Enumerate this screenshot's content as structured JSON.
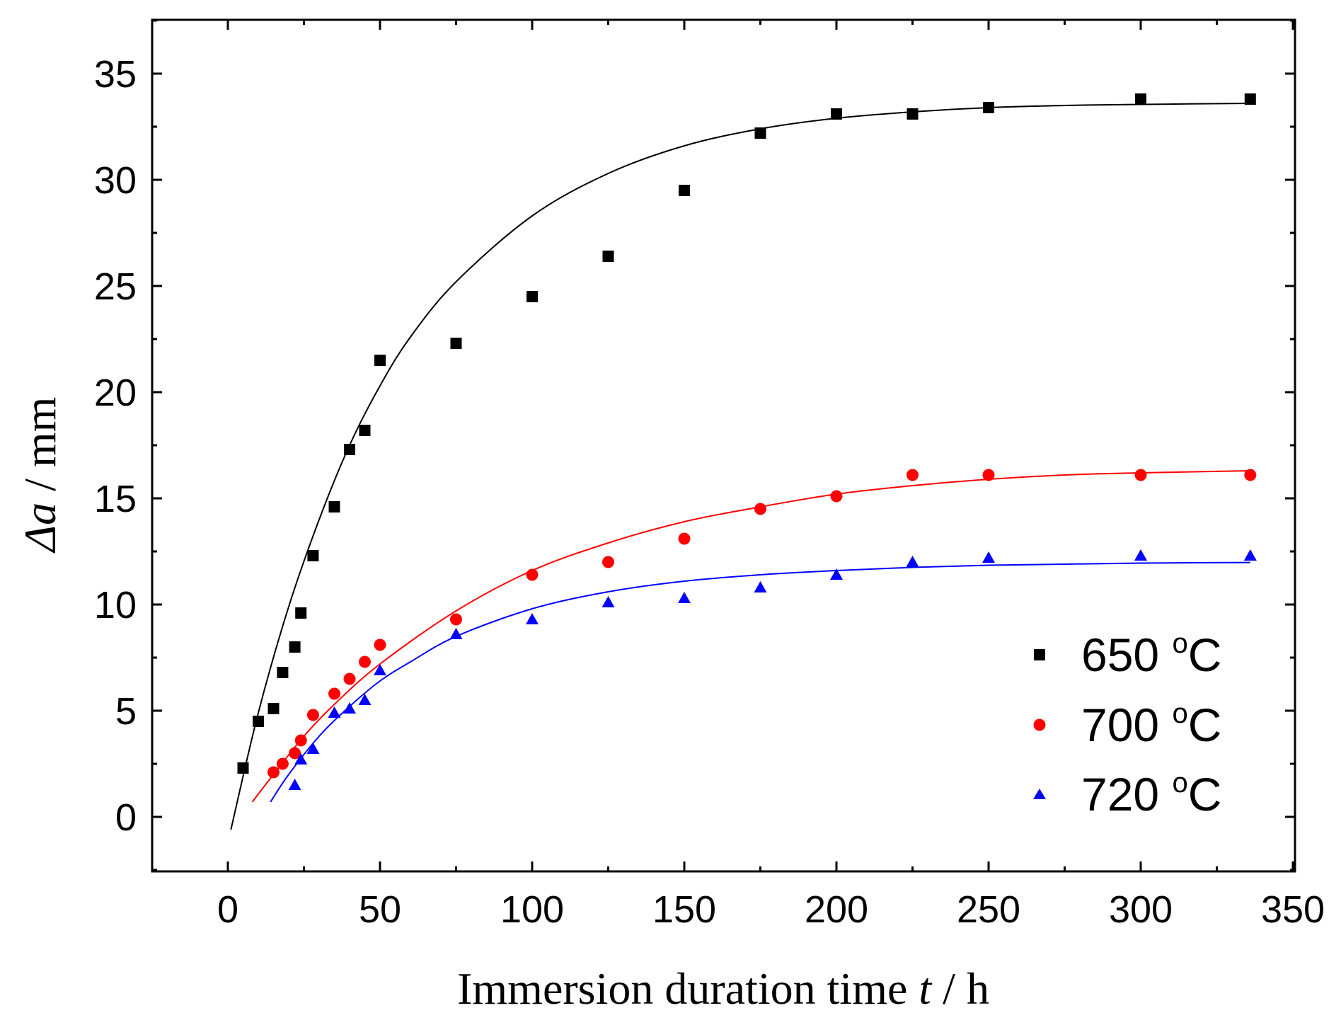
{
  "chart_data": {
    "type": "scatter",
    "xlabel": {
      "prefix": "Immersion duration time ",
      "var": "t",
      "suffix": " / h"
    },
    "ylabel": {
      "var": "Δa",
      "suffix": " / mm"
    },
    "xlim": [
      -25,
      350
    ],
    "ylim": [
      -2.5,
      37.5
    ],
    "xticks": [
      0,
      50,
      100,
      150,
      200,
      250,
      300,
      350
    ],
    "yticks": [
      0,
      5,
      10,
      15,
      20,
      25,
      30,
      35
    ],
    "grid": false,
    "legend_position": "bottom-right",
    "series": [
      {
        "name": "650 °C",
        "label_num": "650",
        "label_unit": "C",
        "label_deg": "o",
        "color": "#000000",
        "marker": "square",
        "x": [
          5,
          10,
          15,
          18,
          22,
          24,
          28,
          35,
          40,
          45,
          50,
          75,
          100,
          125,
          150,
          175,
          200,
          225,
          250,
          300,
          336
        ],
        "y": [
          2.3,
          4.5,
          5.1,
          6.8,
          8.0,
          9.6,
          12.3,
          14.6,
          17.3,
          18.2,
          21.5,
          22.3,
          24.5,
          26.4,
          29.5,
          32.2,
          33.1,
          33.1,
          33.4,
          33.8,
          33.8
        ],
        "fit": {
          "x": [
            1,
            10,
            20,
            30,
            40,
            50,
            60,
            75,
            100,
            125,
            150,
            175,
            200,
            225,
            250,
            275,
            300,
            336
          ],
          "y": [
            -0.6,
            4.9,
            9.9,
            14.0,
            17.5,
            20.3,
            22.6,
            25.2,
            28.3,
            30.3,
            31.6,
            32.4,
            32.9,
            33.2,
            33.4,
            33.5,
            33.55,
            33.6
          ]
        }
      },
      {
        "name": "700 °C",
        "label_num": "700",
        "label_unit": "C",
        "label_deg": "o",
        "color": "#ff0000",
        "marker": "circle",
        "x": [
          15,
          18,
          22,
          24,
          28,
          35,
          40,
          45,
          50,
          75,
          100,
          125,
          150,
          175,
          200,
          225,
          250,
          300,
          336
        ],
        "y": [
          2.1,
          2.5,
          3.0,
          3.6,
          4.8,
          5.8,
          6.5,
          7.3,
          8.1,
          9.3,
          11.4,
          12.0,
          13.1,
          14.5,
          15.1,
          16.1,
          16.1,
          16.1,
          16.1
        ],
        "fit": {
          "x": [
            8,
            15,
            25,
            35,
            50,
            75,
            100,
            125,
            150,
            175,
            200,
            225,
            250,
            275,
            300,
            336
          ],
          "y": [
            0.7,
            2.0,
            3.8,
            5.3,
            7.2,
            9.7,
            11.6,
            12.9,
            13.9,
            14.6,
            15.2,
            15.6,
            15.9,
            16.1,
            16.2,
            16.3
          ]
        }
      },
      {
        "name": "720 °C",
        "label_num": "720",
        "label_unit": "C",
        "label_deg": "o",
        "color": "#0000ff",
        "marker": "triangle",
        "x": [
          22,
          24,
          28,
          35,
          40,
          45,
          50,
          75,
          100,
          125,
          150,
          175,
          200,
          225,
          250,
          300,
          336
        ],
        "y": [
          1.5,
          2.7,
          3.2,
          4.9,
          5.1,
          5.5,
          6.9,
          8.6,
          9.3,
          10.1,
          10.3,
          10.8,
          11.4,
          12.0,
          12.2,
          12.3,
          12.3
        ],
        "fit": {
          "x": [
            14,
            20,
            30,
            40,
            50,
            60,
            75,
            100,
            125,
            150,
            175,
            200,
            225,
            250,
            275,
            300,
            336
          ],
          "y": [
            0.7,
            2.0,
            3.8,
            5.2,
            6.4,
            7.3,
            8.5,
            9.8,
            10.6,
            11.1,
            11.4,
            11.6,
            11.75,
            11.85,
            11.9,
            11.95,
            11.98
          ]
        }
      }
    ]
  }
}
